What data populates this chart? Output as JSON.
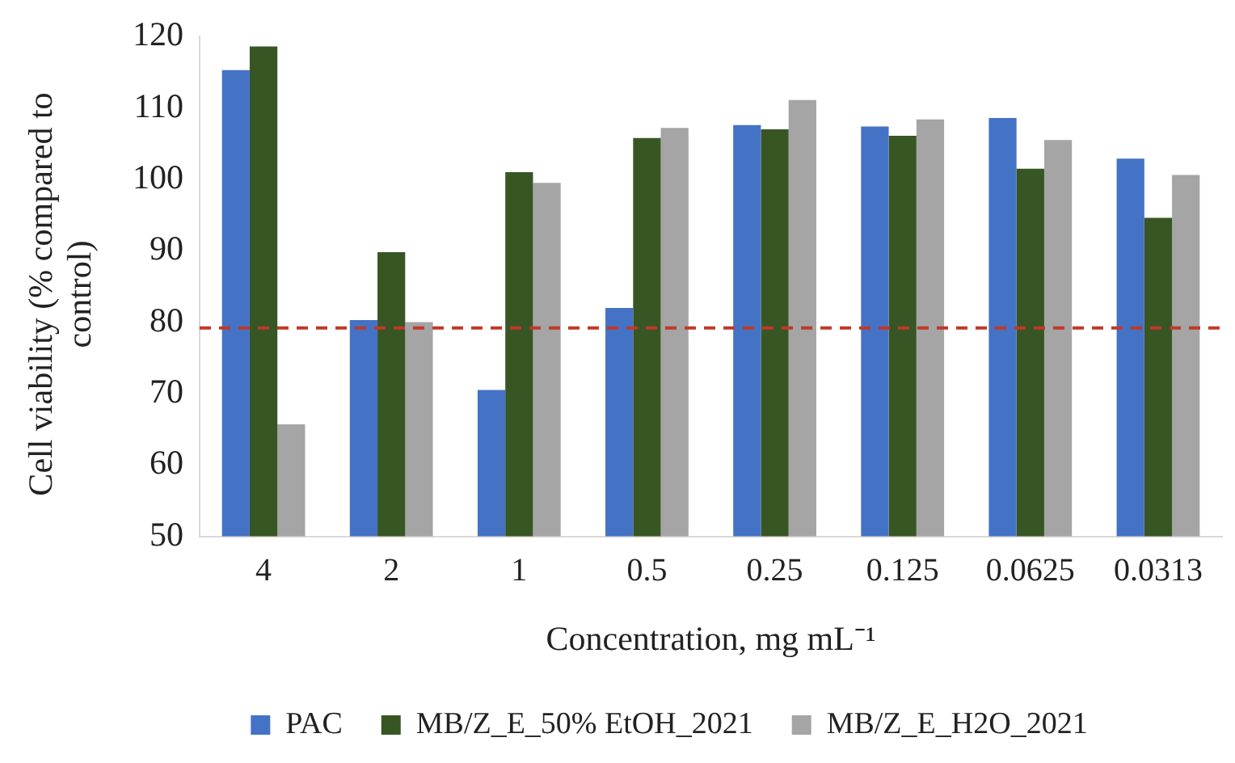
{
  "chart_data": {
    "type": "bar",
    "xlabel": "Concentration, mg mL⁻¹",
    "ylabel": "Cell viability (% compared to control)",
    "categories": [
      "4",
      "2",
      "1",
      "0.5",
      "0.25",
      "0.125",
      "0.0625",
      "0.0313"
    ],
    "series": [
      {
        "name": "PAC",
        "color": "#4472c4",
        "values": [
          115.3,
          80.3,
          70.5,
          82,
          107.6,
          107.4,
          108.6,
          102.9
        ]
      },
      {
        "name": "MB/Z_E_50% EtOH_2021",
        "color": "#375623",
        "values": [
          118.6,
          89.8,
          101,
          105.8,
          107,
          106.1,
          101.5,
          94.6
        ]
      },
      {
        "name": "MB/Z_E_H2O_2021",
        "color": "#a5a5a5",
        "values": [
          65.7,
          80,
          99.5,
          107.2,
          111.1,
          108.4,
          105.5,
          100.6
        ]
      }
    ],
    "ylim": [
      50,
      120
    ],
    "yticks": [
      50,
      60,
      70,
      80,
      90,
      100,
      110,
      120
    ],
    "grid": false,
    "legend": "bottom",
    "ref_lines": [
      {
        "axis": "y",
        "value": 79.2,
        "color": "#c0392b",
        "line_style": "dashed"
      }
    ]
  }
}
